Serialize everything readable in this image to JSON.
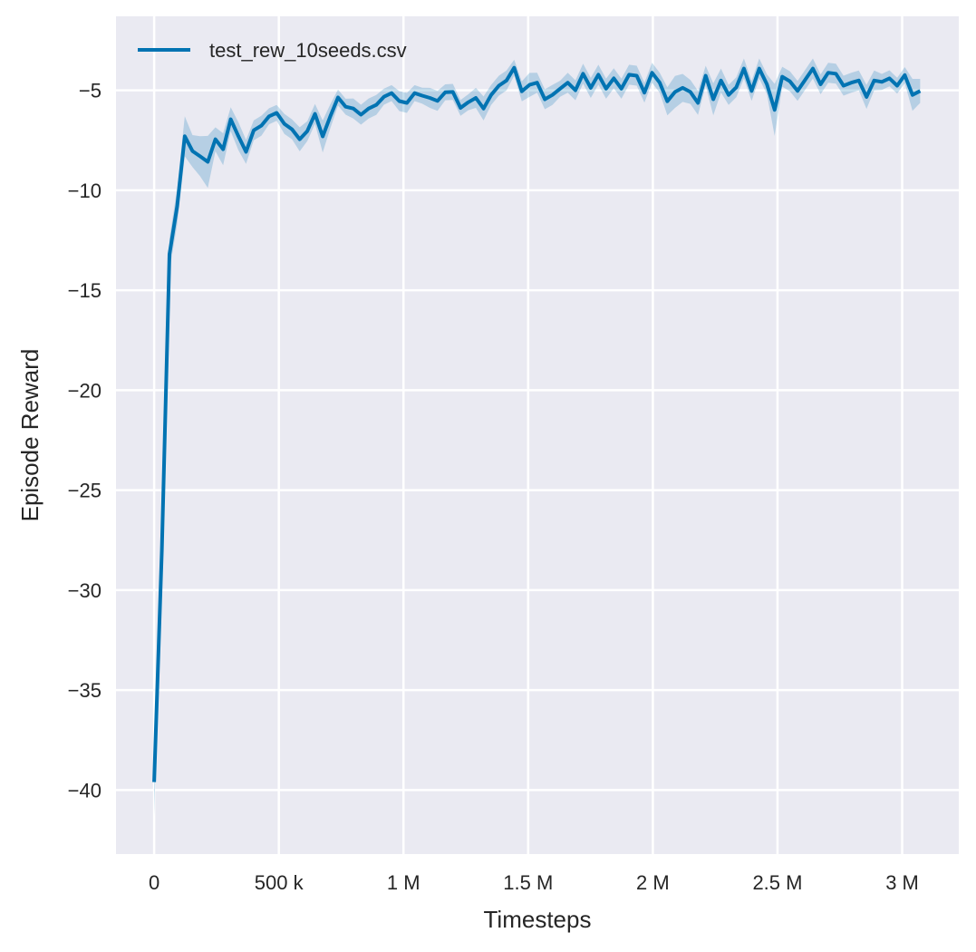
{
  "chart_data": {
    "type": "line",
    "title": "",
    "xlabel": "Timesteps",
    "ylabel": "Episode Reward",
    "xlim": [
      -153000,
      3227000
    ],
    "ylim": [
      -43.2,
      -1.3
    ],
    "grid": true,
    "legend_placement": "top-left",
    "colors": {
      "line": "#0173b2",
      "band": "#0173b2",
      "plot_bg": "#eaeaf2",
      "grid": "#ffffff"
    },
    "xticks": [
      {
        "value": 0,
        "label": "0"
      },
      {
        "value": 500000,
        "label": "500 k"
      },
      {
        "value": 1000000,
        "label": "1 M"
      },
      {
        "value": 1500000,
        "label": "1.5 M"
      },
      {
        "value": 2000000,
        "label": "2 M"
      },
      {
        "value": 2500000,
        "label": "2.5 M"
      },
      {
        "value": 3000000,
        "label": "3 M"
      }
    ],
    "yticks": [
      {
        "value": -5,
        "label": "−5"
      },
      {
        "value": -10,
        "label": "−10"
      },
      {
        "value": -15,
        "label": "−15"
      },
      {
        "value": -20,
        "label": "−20"
      },
      {
        "value": -25,
        "label": "−25"
      },
      {
        "value": -30,
        "label": "−30"
      },
      {
        "value": -35,
        "label": "−35"
      },
      {
        "value": -40,
        "label": "−40"
      }
    ],
    "series": [
      {
        "name": "test_rew_10seeds.csv",
        "x": [
          0,
          30720,
          61440,
          92160,
          122880,
          153600,
          184320,
          215040,
          245760,
          276480,
          307200,
          337920,
          368640,
          399360,
          430080,
          460800,
          491520,
          522240,
          552960,
          583680,
          614400,
          645120,
          675840,
          706560,
          737280,
          768000,
          798720,
          829440,
          860160,
          890880,
          921600,
          952320,
          983040,
          1013760,
          1044480,
          1075200,
          1105920,
          1136640,
          1167360,
          1198080,
          1228800,
          1259520,
          1290240,
          1320960,
          1351680,
          1382400,
          1413120,
          1443840,
          1474560,
          1505280,
          1536000,
          1566720,
          1597440,
          1628160,
          1658880,
          1689600,
          1720320,
          1751040,
          1781760,
          1812480,
          1843200,
          1873920,
          1904640,
          1935360,
          1966080,
          1996800,
          2027520,
          2058240,
          2088960,
          2119680,
          2150400,
          2181120,
          2211840,
          2242560,
          2273280,
          2304000,
          2334720,
          2365440,
          2396160,
          2426880,
          2457600,
          2488320,
          2519040,
          2549760,
          2580480,
          2611200,
          2641920,
          2672640,
          2703360,
          2734080,
          2764800,
          2795520,
          2826240,
          2856960,
          2887680,
          2918400,
          2949120,
          2979840,
          3010560,
          3041280,
          3072000
        ],
        "values": [
          -39.6,
          -28.0,
          -13.2,
          -10.8,
          -7.3,
          -8.04,
          -8.3,
          -8.58,
          -7.45,
          -7.95,
          -6.45,
          -7.3,
          -8.08,
          -7.0,
          -6.77,
          -6.3,
          -6.13,
          -6.68,
          -6.95,
          -7.45,
          -7.04,
          -6.18,
          -7.31,
          -6.3,
          -5.36,
          -5.82,
          -5.91,
          -6.22,
          -5.91,
          -5.73,
          -5.32,
          -5.14,
          -5.54,
          -5.63,
          -5.14,
          -5.27,
          -5.38,
          -5.53,
          -5.1,
          -5.08,
          -5.88,
          -5.6,
          -5.38,
          -5.91,
          -5.23,
          -4.77,
          -4.51,
          -3.87,
          -5.05,
          -4.73,
          -4.62,
          -5.45,
          -5.23,
          -4.92,
          -4.62,
          -5.0,
          -4.17,
          -4.88,
          -4.22,
          -4.92,
          -4.4,
          -4.92,
          -4.22,
          -4.27,
          -5.12,
          -4.12,
          -4.62,
          -5.55,
          -5.08,
          -4.88,
          -5.08,
          -5.63,
          -4.27,
          -5.45,
          -4.51,
          -5.23,
          -4.85,
          -3.91,
          -5.03,
          -3.91,
          -4.7,
          -5.98,
          -4.32,
          -4.55,
          -5.03,
          -4.47,
          -3.91,
          -4.7,
          -4.12,
          -4.17,
          -4.77,
          -4.62,
          -4.51,
          -5.33,
          -4.51,
          -4.58,
          -4.4,
          -4.77,
          -4.24,
          -5.23,
          -5.03
        ],
        "ci_halfwidth": [
          1.7,
          1.0,
          0.8,
          0.9,
          1.0,
          0.8,
          1.0,
          1.3,
          0.6,
          0.8,
          0.6,
          0.7,
          0.6,
          0.5,
          0.5,
          0.4,
          0.4,
          0.5,
          0.5,
          0.6,
          0.5,
          0.5,
          0.8,
          0.6,
          0.4,
          0.4,
          0.5,
          0.5,
          0.5,
          0.5,
          0.4,
          0.4,
          0.5,
          0.5,
          0.4,
          0.4,
          0.5,
          0.5,
          0.4,
          0.4,
          0.4,
          0.4,
          0.5,
          0.6,
          0.5,
          0.5,
          0.5,
          0.4,
          0.5,
          0.6,
          0.5,
          0.5,
          0.5,
          0.4,
          0.5,
          0.5,
          0.5,
          0.5,
          0.5,
          0.5,
          0.5,
          0.5,
          0.5,
          0.5,
          0.5,
          0.5,
          0.5,
          0.7,
          0.8,
          0.7,
          0.6,
          0.6,
          0.5,
          0.8,
          0.6,
          0.5,
          0.5,
          0.5,
          0.5,
          0.5,
          0.5,
          1.3,
          0.5,
          0.5,
          0.5,
          0.5,
          0.5,
          0.5,
          0.5,
          0.5,
          0.5,
          0.5,
          0.5,
          0.6,
          0.5,
          0.4,
          0.4,
          0.4,
          0.4,
          0.8,
          0.6
        ]
      }
    ]
  }
}
